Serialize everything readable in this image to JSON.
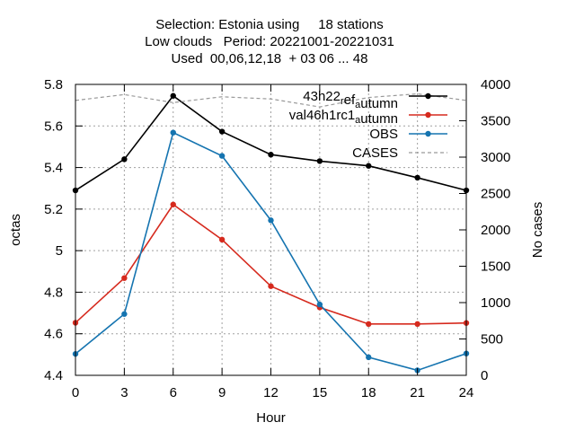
{
  "chart_data": {
    "type": "line",
    "title": [
      "Selection: Estonia using     18 stations",
      "Low clouds   Period: 20221001-20221031",
      "Used  00,06,12,18  + 03 06 ... 48"
    ],
    "xlabel": "Hour",
    "ylabel": "octas",
    "y2label": "No cases",
    "x": [
      0,
      3,
      6,
      9,
      12,
      15,
      18,
      21,
      24
    ],
    "xlim": [
      0,
      24
    ],
    "ylim": [
      4.4,
      5.8
    ],
    "y2lim": [
      0,
      4000
    ],
    "xticks": [
      "0",
      "3",
      "6",
      "9",
      "12",
      "15",
      "18",
      "21",
      "24"
    ],
    "yticks": [
      "4.4",
      "4.6",
      "4.8",
      "5",
      "5.2",
      "5.4",
      "5.6",
      "5.8"
    ],
    "y2ticks": [
      "0",
      "500",
      "1000",
      "1500",
      "2000",
      "2500",
      "3000",
      "3500",
      "4000"
    ],
    "grid": true,
    "legend_position": "top-right",
    "series": [
      {
        "name": "43h22_ref_autumn",
        "legend_main": "43h22",
        "legend_sub1": "r",
        "legend_mid": "ef",
        "legend_sub2": "a",
        "legend_end": "utumn",
        "color": "#000000",
        "axis": "y1",
        "style": "solid",
        "values": [
          5.29,
          5.44,
          5.745,
          5.573,
          5.462,
          5.431,
          5.408,
          5.351,
          5.29
        ]
      },
      {
        "name": "val46h1rc1_autumn",
        "legend_main": "val46h1rc1",
        "legend_sub1": "",
        "legend_mid": "",
        "legend_sub2": "a",
        "legend_end": "utumn",
        "color": "#d62a1e",
        "axis": "y1",
        "style": "solid",
        "values": [
          4.653,
          4.868,
          5.222,
          5.053,
          4.829,
          4.727,
          4.647,
          4.647,
          4.652
        ]
      },
      {
        "name": "OBS",
        "legend_main": "OBS",
        "legend_sub1": "",
        "legend_mid": "",
        "legend_sub2": "",
        "legend_end": "",
        "color": "#1574b0",
        "axis": "y1",
        "style": "solid",
        "values": [
          4.503,
          4.695,
          5.568,
          5.456,
          5.146,
          4.741,
          4.487,
          4.424,
          4.505
        ]
      },
      {
        "name": "CASES",
        "legend_main": "CASES",
        "legend_sub1": "",
        "legend_mid": "",
        "legend_sub2": "",
        "legend_end": "",
        "color": "#999999",
        "axis": "y2",
        "style": "dashed",
        "values": [
          3780,
          3860,
          3750,
          3830,
          3800,
          3690,
          3820,
          3870,
          3780
        ]
      }
    ]
  }
}
